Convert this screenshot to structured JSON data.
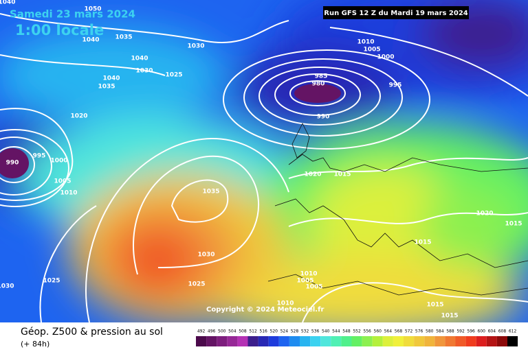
{
  "header": {
    "date": "Samedi 23 mars 2024",
    "time": "1:00 locale",
    "run": "Run GFS 12 Z du Mardi 19 mars 2024"
  },
  "isobar_labels": [
    "1040",
    "1050",
    "1040",
    "1035",
    "1030",
    "1040",
    "1030",
    "1025",
    "1040",
    "1035",
    "1020",
    "985",
    "980",
    "990",
    "1010",
    "1005",
    "1000",
    "995",
    "995",
    "990",
    "1000",
    "1005",
    "1010",
    "1035",
    "1020",
    "1015",
    "1030",
    "1025",
    "1025",
    "1030",
    "1010",
    "1005",
    "1005",
    "1010",
    "1020",
    "1015",
    "1015",
    "1015",
    "1015"
  ],
  "copyright": "Copyright © 2024 Meteociel.fr",
  "footer": {
    "title": "Géop. Z500 & pression au sol",
    "lead": "(+ 84h)"
  },
  "scale": {
    "labels": [
      492,
      496,
      500,
      504,
      508,
      512,
      516,
      520,
      524,
      528,
      532,
      536,
      540,
      544,
      548,
      552,
      556,
      560,
      564,
      568,
      572,
      576,
      580,
      584,
      588,
      592,
      596,
      600,
      604,
      608,
      612
    ],
    "colors": [
      "#4b0a4b",
      "#641464",
      "#7d1e7d",
      "#962896",
      "#b432b4",
      "#3c1e8c",
      "#2828b4",
      "#1e3cdc",
      "#1e64f0",
      "#1e8cf0",
      "#28b4f0",
      "#3cd2f0",
      "#50e6dc",
      "#50f0b4",
      "#50f08c",
      "#64f064",
      "#8cf050",
      "#b4f03c",
      "#dcf03c",
      "#f0f03c",
      "#f0dc3c",
      "#f0c83c",
      "#f0b43c",
      "#f0963c",
      "#f07832",
      "#f05a28",
      "#f03c1e",
      "#dc1e1e",
      "#b41414",
      "#8c0a0a",
      "#000000"
    ]
  }
}
